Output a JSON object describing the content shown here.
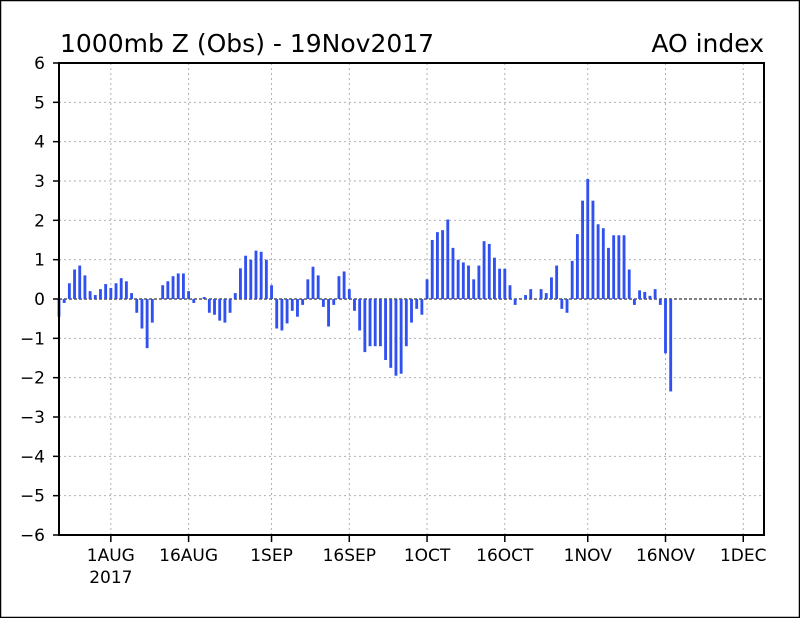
{
  "chart_data": {
    "type": "bar",
    "title": "1000mb Z (Obs) - 19Nov2017",
    "title_right": "AO index",
    "xlabel": "",
    "ylabel": "",
    "ylim": [
      -6,
      6
    ],
    "y_ticks": [
      "-6",
      "-5",
      "-4",
      "-3",
      "-2",
      "-1",
      "0",
      "1",
      "2",
      "3",
      "4",
      "5",
      "6"
    ],
    "x_start": "2017-07-22",
    "x_end": "2017-12-05",
    "x_ticks": [
      {
        "date": "2017-08-01",
        "label": "1AUG",
        "sublabel": "2017"
      },
      {
        "date": "2017-08-16",
        "label": "16AUG"
      },
      {
        "date": "2017-09-01",
        "label": "1SEP"
      },
      {
        "date": "2017-09-16",
        "label": "16SEP"
      },
      {
        "date": "2017-10-01",
        "label": "1OCT"
      },
      {
        "date": "2017-10-16",
        "label": "16OCT"
      },
      {
        "date": "2017-11-01",
        "label": "1NOV"
      },
      {
        "date": "2017-11-16",
        "label": "16NOV"
      },
      {
        "date": "2017-12-01",
        "label": "1DEC"
      }
    ],
    "grid": true,
    "bar_color": "#3050f0",
    "series": [
      {
        "start_date": "2017-07-22",
        "values": [
          -0.45,
          -0.1,
          0.4,
          0.75,
          0.85,
          0.6,
          0.2,
          0.1,
          0.25,
          0.38,
          0.28,
          0.4,
          0.53,
          0.45,
          0.15,
          -0.35,
          -0.75,
          -1.25,
          -0.6,
          0.0,
          0.35,
          0.45,
          0.58,
          0.65,
          0.65,
          0.2,
          -0.1,
          0.0,
          0.05,
          -0.35,
          -0.4,
          -0.55,
          -0.6,
          -0.35,
          0.15,
          0.78,
          1.1,
          1.0,
          1.23,
          1.2,
          1.0,
          0.35,
          -0.75,
          -0.8,
          -0.62,
          -0.3,
          -0.45,
          -0.15,
          0.5,
          0.82,
          0.6,
          -0.2,
          -0.7,
          -0.15,
          0.58,
          0.7,
          0.25,
          -0.3,
          -0.8,
          -1.35,
          -1.2,
          -1.2,
          -1.2,
          -1.55,
          -1.75,
          -1.95,
          -1.9,
          -1.2,
          -0.6,
          -0.25,
          -0.4,
          0.5,
          1.5,
          1.7,
          1.75,
          2.02,
          1.3,
          1.0,
          0.93,
          0.85,
          0.5,
          0.85,
          1.47,
          1.4,
          1.05,
          0.77,
          0.77,
          0.35,
          -0.15,
          0.02,
          0.1,
          0.25,
          0.0,
          0.25,
          0.15,
          0.55,
          0.85,
          -0.25,
          -0.35,
          0.97,
          1.65,
          2.5,
          3.05,
          2.5,
          1.9,
          1.8,
          1.3,
          1.62,
          1.62,
          1.62,
          0.75,
          -0.15,
          0.22,
          0.18,
          0.08,
          0.25,
          -0.15,
          -1.38,
          -2.35
        ]
      }
    ]
  }
}
